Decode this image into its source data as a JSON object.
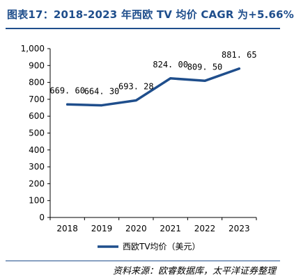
{
  "header": {
    "title": "图表17：2018-2023 年西欧 TV 均价 CAGR 为+5.66%"
  },
  "footer": {
    "source": "资料来源：欧睿数据库，太平洋证券整理"
  },
  "colors": {
    "accent": "#1f4e8c",
    "line": "#1f4e8c"
  },
  "chart_data": {
    "type": "line",
    "categories": [
      "2018",
      "2019",
      "2020",
      "2021",
      "2022",
      "2023"
    ],
    "series": [
      {
        "name": "西欧TV均价（美元）",
        "values": [
          669.6,
          664.3,
          693.28,
          824.0,
          809.5,
          881.65
        ],
        "labels": [
          "669. 60",
          "664. 30",
          "693. 28",
          "824. 00",
          "809. 50",
          "881. 65"
        ]
      }
    ],
    "ylim": [
      0,
      1000
    ],
    "yticks": [
      0,
      100,
      200,
      300,
      400,
      500,
      600,
      700,
      800,
      900,
      1000
    ],
    "ytick_labels": [
      "0",
      "100",
      "200",
      "300",
      "400",
      "500",
      "600",
      "700",
      "800",
      "900",
      "1,000"
    ],
    "grid": false,
    "legend": "bottom"
  }
}
